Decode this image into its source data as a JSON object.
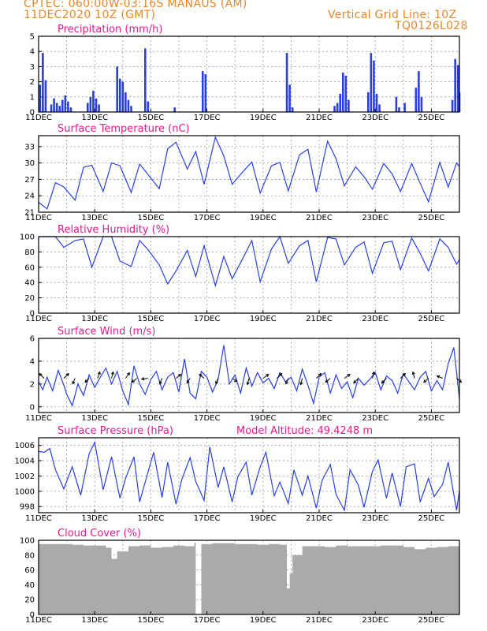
{
  "header": {
    "line1": "CPTEC:    060:00W-03:16S    MANAUS (AM)",
    "line2": "11DEC2020  10Z (GMT)",
    "grid_note": "Vertical Grid Line: 10Z",
    "code": "TQ0126L028",
    "color": "#e8862a"
  },
  "colors": {
    "series": "#2a3fe0",
    "cloud": "#aaaaaa",
    "title": "#e6198c"
  },
  "chart_data": [
    {
      "type": "bar",
      "title": "Precipitation  (mm/h)",
      "ylim": [
        0,
        5
      ],
      "yticks": [
        0,
        1,
        2,
        3,
        4,
        5
      ],
      "x_day_range": [
        11,
        26
      ],
      "x_ticks": [
        "11DEC",
        "13DEC",
        "15DEC",
        "17DEC",
        "19DEC",
        "21DEC",
        "23DEC",
        "25DEC"
      ],
      "bars": [
        {
          "day": 11.05,
          "value": 1.8
        },
        {
          "day": 11.15,
          "value": 3.9
        },
        {
          "day": 11.25,
          "value": 2.1
        },
        {
          "day": 11.45,
          "value": 0.5
        },
        {
          "day": 11.55,
          "value": 0.9
        },
        {
          "day": 11.65,
          "value": 0.6
        },
        {
          "day": 11.75,
          "value": 0.4
        },
        {
          "day": 11.85,
          "value": 0.8
        },
        {
          "day": 11.95,
          "value": 1.1
        },
        {
          "day": 12.05,
          "value": 0.7
        },
        {
          "day": 12.15,
          "value": 0.3
        },
        {
          "day": 12.75,
          "value": 0.6
        },
        {
          "day": 12.85,
          "value": 1.0
        },
        {
          "day": 12.95,
          "value": 1.4
        },
        {
          "day": 13.05,
          "value": 0.9
        },
        {
          "day": 13.15,
          "value": 0.5
        },
        {
          "day": 13.8,
          "value": 3.0
        },
        {
          "day": 13.9,
          "value": 2.2
        },
        {
          "day": 14.0,
          "value": 2.0
        },
        {
          "day": 14.1,
          "value": 1.3
        },
        {
          "day": 14.2,
          "value": 0.8
        },
        {
          "day": 14.3,
          "value": 0.4
        },
        {
          "day": 14.8,
          "value": 4.2
        },
        {
          "day": 14.9,
          "value": 0.7
        },
        {
          "day": 15.85,
          "value": 0.3
        },
        {
          "day": 16.85,
          "value": 2.7
        },
        {
          "day": 16.95,
          "value": 2.5
        },
        {
          "day": 19.85,
          "value": 3.9
        },
        {
          "day": 19.95,
          "value": 1.8
        },
        {
          "day": 20.05,
          "value": 0.3
        },
        {
          "day": 21.55,
          "value": 0.4
        },
        {
          "day": 21.65,
          "value": 0.6
        },
        {
          "day": 21.75,
          "value": 1.2
        },
        {
          "day": 21.85,
          "value": 2.6
        },
        {
          "day": 21.95,
          "value": 2.4
        },
        {
          "day": 22.05,
          "value": 0.8
        },
        {
          "day": 22.75,
          "value": 1.3
        },
        {
          "day": 22.85,
          "value": 3.9
        },
        {
          "day": 22.95,
          "value": 3.4
        },
        {
          "day": 23.05,
          "value": 1.2
        },
        {
          "day": 23.15,
          "value": 0.5
        },
        {
          "day": 23.75,
          "value": 1.0
        },
        {
          "day": 23.85,
          "value": 0.3
        },
        {
          "day": 24.05,
          "value": 0.6
        },
        {
          "day": 24.45,
          "value": 1.6
        },
        {
          "day": 24.55,
          "value": 2.7
        },
        {
          "day": 24.65,
          "value": 1.0
        },
        {
          "day": 25.75,
          "value": 0.8
        },
        {
          "day": 25.85,
          "value": 3.5
        },
        {
          "day": 25.95,
          "value": 3.1
        },
        {
          "day": 26.0,
          "value": 1.3
        }
      ]
    },
    {
      "type": "line",
      "title": "Surface Temperature (nC)",
      "ylim": [
        21,
        35
      ],
      "yticks": [
        21,
        24,
        27,
        30,
        33
      ],
      "x_day_range": [
        11,
        26
      ],
      "x_ticks": [
        "11DEC",
        "13DEC",
        "15DEC",
        "17DEC",
        "19DEC",
        "21DEC",
        "23DEC",
        "25DEC"
      ],
      "days": [
        11.0,
        11.3,
        11.6,
        11.9,
        12.3,
        12.6,
        12.9,
        13.3,
        13.6,
        13.9,
        14.3,
        14.6,
        14.9,
        15.3,
        15.6,
        15.9,
        16.3,
        16.6,
        16.9,
        17.3,
        17.6,
        17.9,
        18.3,
        18.6,
        18.9,
        19.3,
        19.6,
        19.9,
        20.3,
        20.6,
        20.9,
        21.3,
        21.6,
        21.9,
        22.3,
        22.6,
        22.9,
        23.3,
        23.6,
        23.9,
        24.3,
        24.6,
        24.9,
        25.3,
        25.6,
        25.9,
        26.0
      ],
      "values": [
        22.8,
        21.6,
        26.4,
        25.6,
        23.2,
        29.2,
        29.6,
        24.8,
        30.0,
        29.5,
        24.6,
        29.8,
        27.9,
        25.3,
        32.6,
        33.8,
        28.9,
        32.1,
        26.1,
        34.7,
        31.3,
        26.1,
        28.5,
        30.2,
        24.5,
        29.5,
        30.1,
        24.9,
        31.5,
        32.5,
        24.7,
        34.0,
        30.8,
        25.8,
        29.3,
        27.5,
        25.2,
        29.9,
        28.0,
        24.8,
        29.9,
        26.3,
        22.9,
        30.1,
        25.6,
        30.0,
        29.3
      ]
    },
    {
      "type": "line",
      "title": "Relative Humidity (%)",
      "ylim": [
        0,
        100
      ],
      "yticks": [
        0,
        20,
        40,
        60,
        80,
        100
      ],
      "x_day_range": [
        11,
        26
      ],
      "x_ticks": [
        "11DEC",
        "13DEC",
        "15DEC",
        "17DEC",
        "19DEC",
        "21DEC",
        "23DEC",
        "25DEC"
      ],
      "days": [
        11.0,
        11.3,
        11.6,
        11.9,
        12.3,
        12.6,
        12.9,
        13.3,
        13.6,
        13.9,
        14.3,
        14.6,
        14.9,
        15.3,
        15.6,
        15.9,
        16.3,
        16.6,
        16.9,
        17.3,
        17.6,
        17.9,
        18.3,
        18.6,
        18.9,
        19.3,
        19.6,
        19.9,
        20.3,
        20.6,
        20.9,
        21.3,
        21.6,
        21.9,
        22.3,
        22.6,
        22.9,
        23.3,
        23.6,
        23.9,
        24.3,
        24.6,
        24.9,
        25.3,
        25.6,
        25.9,
        26.0
      ],
      "values": [
        100,
        100,
        100,
        86,
        95,
        97,
        60,
        100,
        100,
        68,
        61,
        95,
        83,
        63,
        38,
        55,
        82,
        48,
        88,
        36,
        74,
        45,
        73,
        95,
        41,
        84,
        100,
        65,
        88,
        95,
        41,
        99,
        97,
        63,
        86,
        93,
        52,
        92,
        94,
        57,
        98,
        78,
        55,
        97,
        86,
        64,
        70
      ]
    },
    {
      "type": "line",
      "title": "Surface Wind (m/s)",
      "ylim": [
        -0.5,
        6
      ],
      "yticks": [
        0,
        2,
        4,
        6
      ],
      "x_day_range": [
        11,
        26
      ],
      "x_ticks": [
        "11DEC",
        "13DEC",
        "15DEC",
        "17DEC",
        "19DEC",
        "21DEC",
        "23DEC",
        "25DEC"
      ],
      "days": [
        11.0,
        11.15,
        11.3,
        11.5,
        11.7,
        11.9,
        12.0,
        12.2,
        12.4,
        12.6,
        12.8,
        13.0,
        13.2,
        13.4,
        13.6,
        13.8,
        14.0,
        14.2,
        14.4,
        14.6,
        14.8,
        15.0,
        15.2,
        15.4,
        15.6,
        15.8,
        16.0,
        16.2,
        16.4,
        16.6,
        16.8,
        17.0,
        17.2,
        17.4,
        17.6,
        17.8,
        18.0,
        18.2,
        18.4,
        18.6,
        18.8,
        19.0,
        19.2,
        19.4,
        19.6,
        19.8,
        20.0,
        20.2,
        20.4,
        20.6,
        20.8,
        21.0,
        21.2,
        21.4,
        21.6,
        21.8,
        22.0,
        22.2,
        22.4,
        22.6,
        22.8,
        23.0,
        23.2,
        23.4,
        23.6,
        23.8,
        24.0,
        24.2,
        24.4,
        24.6,
        24.8,
        25.0,
        25.2,
        25.4,
        25.6,
        25.8,
        26.0
      ],
      "values": [
        2.2,
        1.5,
        2.6,
        1.4,
        3.2,
        1.9,
        1.1,
        0.1,
        2.0,
        1.0,
        2.8,
        1.7,
        2.6,
        3.4,
        2.0,
        3.1,
        1.4,
        0.2,
        3.6,
        2.0,
        1.1,
        2.4,
        3.1,
        1.5,
        2.6,
        3.0,
        1.3,
        4.2,
        1.2,
        0.7,
        3.1,
        2.6,
        1.3,
        2.4,
        5.4,
        2.0,
        2.8,
        1.2,
        3.4,
        1.8,
        3.0,
        2.1,
        2.5,
        1.6,
        3.0,
        2.2,
        2.6,
        1.4,
        3.3,
        1.9,
        0.3,
        2.6,
        3.0,
        1.2,
        2.8,
        1.6,
        2.2,
        0.8,
        2.5,
        1.9,
        2.4,
        3.0,
        1.5,
        2.7,
        2.3,
        1.2,
        2.9,
        2.2,
        1.5,
        2.6,
        3.1,
        1.4,
        2.3,
        1.5,
        3.8,
        5.2,
        0.7
      ]
    },
    {
      "type": "line",
      "title": "Surface Pressure (hPa)",
      "subtitle": "Model Altitude: 49.4248  m",
      "ylim": [
        997.2,
        1007
      ],
      "yticks": [
        998,
        1000,
        1002,
        1004,
        1006
      ],
      "x_day_range": [
        11,
        26
      ],
      "x_ticks": [
        "11DEC",
        "13DEC",
        "15DEC",
        "17DEC",
        "19DEC",
        "21DEC",
        "23DEC",
        "25DEC"
      ],
      "days": [
        11.0,
        11.2,
        11.4,
        11.6,
        11.9,
        12.2,
        12.5,
        12.8,
        13.0,
        13.3,
        13.6,
        13.9,
        14.1,
        14.4,
        14.6,
        14.9,
        15.1,
        15.4,
        15.6,
        15.9,
        16.1,
        16.4,
        16.6,
        16.9,
        17.1,
        17.4,
        17.6,
        17.9,
        18.1,
        18.4,
        18.6,
        18.9,
        19.1,
        19.4,
        19.6,
        19.9,
        20.1,
        20.4,
        20.6,
        20.9,
        21.1,
        21.4,
        21.6,
        21.9,
        22.1,
        22.4,
        22.6,
        22.9,
        23.1,
        23.4,
        23.6,
        23.9,
        24.1,
        24.4,
        24.6,
        24.9,
        25.1,
        25.4,
        25.6,
        25.9,
        26.0
      ],
      "values": [
        1005.2,
        1005.1,
        1005.6,
        1002.8,
        1000.3,
        1003.2,
        999.5,
        1004.9,
        1006.4,
        1000.2,
        1004.5,
        999.1,
        1001.7,
        1004.5,
        998.6,
        1002.5,
        1005.1,
        999.2,
        1003.8,
        998.3,
        1001.5,
        1004.4,
        1001.3,
        998.8,
        1005.8,
        1000.5,
        1003.2,
        998.6,
        1001.9,
        1003.8,
        999.5,
        1003.2,
        1005.1,
        999.4,
        1001.2,
        998.4,
        1002.8,
        999.5,
        1002.0,
        997.8,
        1001.4,
        1003.5,
        999.6,
        997.5,
        1002.8,
        1000.8,
        997.9,
        1002.6,
        1004.1,
        999.1,
        1002.4,
        998.0,
        1003.2,
        1003.6,
        998.6,
        1001.7,
        999.3,
        1000.9,
        1003.8,
        997.5,
        1000.1
      ]
    },
    {
      "type": "bar",
      "title": "Cloud Cover (%)",
      "ylim": [
        0,
        100
      ],
      "yticks": [
        0,
        20,
        40,
        60,
        80,
        100
      ],
      "x_day_range": [
        11,
        26
      ],
      "x_ticks": [
        "11DEC",
        "13DEC",
        "15DEC",
        "17DEC",
        "19DEC",
        "21DEC",
        "23DEC",
        "25DEC"
      ],
      "days": [
        11.0,
        11.4,
        11.8,
        12.2,
        12.6,
        13.0,
        13.4,
        13.6,
        13.8,
        14.2,
        14.6,
        15.0,
        15.4,
        15.8,
        16.2,
        16.55,
        16.6,
        16.8,
        17.2,
        17.6,
        18.0,
        18.4,
        18.8,
        19.2,
        19.6,
        19.85,
        19.95,
        20.05,
        20.4,
        20.8,
        21.2,
        21.6,
        22.0,
        22.4,
        22.8,
        23.2,
        23.6,
        24.0,
        24.4,
        24.8,
        25.2,
        25.6,
        26.0
      ],
      "values": [
        95,
        95,
        95,
        94,
        93,
        93,
        90,
        75,
        85,
        92,
        93,
        90,
        91,
        93,
        92,
        97,
        0,
        95,
        96,
        96,
        95,
        95,
        94,
        95,
        94,
        35,
        55,
        80,
        92,
        92,
        91,
        93,
        92,
        92,
        92,
        93,
        93,
        91,
        88,
        90,
        91,
        92,
        94
      ]
    }
  ]
}
